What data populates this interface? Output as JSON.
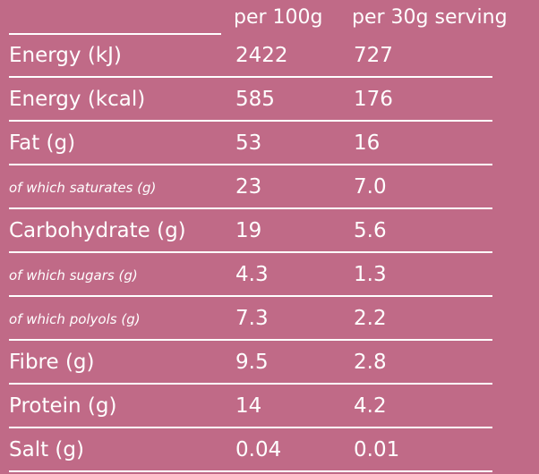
{
  "header": {
    "per_100g": "per 100g",
    "per_serving": "per 30g serving"
  },
  "rows": [
    {
      "label": "Energy (kJ)",
      "per_100g": "2422",
      "per_serving": "727",
      "sub": false
    },
    {
      "label": "Energy (kcal)",
      "per_100g": "585",
      "per_serving": "176",
      "sub": false
    },
    {
      "label": "Fat (g)",
      "per_100g": "53",
      "per_serving": "16",
      "sub": false
    },
    {
      "label": "of which saturates (g)",
      "per_100g": "23",
      "per_serving": "7.0",
      "sub": true
    },
    {
      "label": "Carbohydrate (g)",
      "per_100g": "19",
      "per_serving": "5.6",
      "sub": false
    },
    {
      "label": "of which sugars (g)",
      "per_100g": "4.3",
      "per_serving": "1.3",
      "sub": true
    },
    {
      "label": "of which polyols (g)",
      "per_100g": "7.3",
      "per_serving": "2.2",
      "sub": true
    },
    {
      "label": "Fibre (g)",
      "per_100g": "9.5",
      "per_serving": "2.8",
      "sub": false
    },
    {
      "label": "Protein (g)",
      "per_100g": "14",
      "per_serving": "4.2",
      "sub": false
    },
    {
      "label": "Salt (g)",
      "per_100g": "0.04",
      "per_serving": "0.01",
      "sub": false
    }
  ],
  "colors": {
    "background": "#c06a87",
    "text": "#ffffff"
  }
}
